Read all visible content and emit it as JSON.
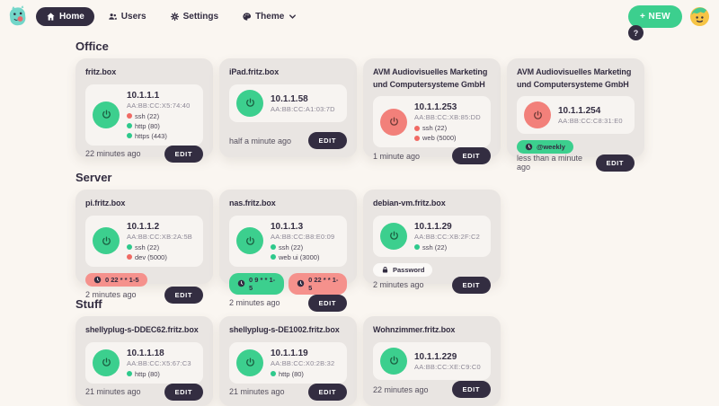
{
  "header": {
    "nav": [
      {
        "label": "Home",
        "icon": "home-icon",
        "active": true,
        "chevron": false
      },
      {
        "label": "Users",
        "icon": "users-icon",
        "active": false,
        "chevron": false
      },
      {
        "label": "Settings",
        "icon": "gear-icon",
        "active": false,
        "chevron": false
      },
      {
        "label": "Theme",
        "icon": "palette-icon",
        "active": false,
        "chevron": true
      }
    ],
    "new_button_label": "+ NEW",
    "help_label": "?"
  },
  "ui": {
    "edit_label": "EDIT"
  },
  "colors": {
    "background": "#faf6f1",
    "card": "#e9e5e2",
    "panel": "#f7f4f1",
    "accent_green": "#3ccf8e",
    "accent_red": "#f2807a",
    "dark": "#332d41",
    "port_open": "#2ec98c",
    "port_closed": "#f06a64"
  },
  "sections": [
    {
      "title": "Office",
      "height_class": "h-office",
      "cards": [
        {
          "name": "fritz.box",
          "power": "on",
          "ip": "10.1.1.1",
          "mac": "AA:BB:CC:X5:74:40",
          "ports": [
            {
              "label": "ssh (22)",
              "status": "closed"
            },
            {
              "label": "http (80)",
              "status": "open"
            },
            {
              "label": "https (443)",
              "status": "open"
            }
          ],
          "badges": [],
          "updated": "22 minutes ago"
        },
        {
          "name": "iPad.fritz.box",
          "power": "on",
          "ip": "10.1.1.58",
          "mac": "AA:BB:CC:A1:03:7D",
          "ports": [],
          "badges": [],
          "updated": "half a minute ago"
        },
        {
          "name": "AVM Audiovisuelles Marketing und Computersysteme GmbH",
          "power": "off",
          "ip": "10.1.1.253",
          "mac": "AA:BB:CC:XB:85:DD",
          "ports": [
            {
              "label": "ssh (22)",
              "status": "closed"
            },
            {
              "label": "web (5000)",
              "status": "closed"
            }
          ],
          "badges": [],
          "updated": "1 minute ago"
        },
        {
          "name": "AVM Audiovisuelles Marketing und Computersysteme GmbH",
          "power": "off",
          "ip": "10.1.1.254",
          "mac": "AA:BB:CC:C8:31:E0",
          "ports": [],
          "badges": [
            {
              "label": "@weekly",
              "type": "green",
              "icon": "clock-icon"
            }
          ],
          "updated": "less than a minute ago"
        }
      ]
    },
    {
      "title": "Server",
      "height_class": "h-server",
      "cards": [
        {
          "name": "pi.fritz.box",
          "power": "on",
          "ip": "10.1.1.2",
          "mac": "AA:BB:CC:XB:2A:5B",
          "ports": [
            {
              "label": "ssh (22)",
              "status": "open"
            },
            {
              "label": "dev (5000)",
              "status": "closed"
            }
          ],
          "badges": [
            {
              "label": "0 22 * * 1-5",
              "type": "red",
              "icon": "clock-icon"
            }
          ],
          "updated": "2 minutes ago"
        },
        {
          "name": "nas.fritz.box",
          "power": "on",
          "ip": "10.1.1.3",
          "mac": "AA:BB:CC:B8:E0:09",
          "ports": [
            {
              "label": "ssh (22)",
              "status": "open"
            },
            {
              "label": "web ui (3000)",
              "status": "open"
            }
          ],
          "badges": [
            {
              "label": "0 9 * * 1-5",
              "type": "green",
              "icon": "clock-icon"
            },
            {
              "label": "0 22 * * 1-5",
              "type": "red",
              "icon": "clock-icon"
            }
          ],
          "updated": "2 minutes ago"
        },
        {
          "name": "debian-vm.fritz.box",
          "power": "on",
          "ip": "10.1.1.29",
          "mac": "AA:BB:CC:XB:2F:C2",
          "ports": [
            {
              "label": "ssh (22)",
              "status": "open"
            }
          ],
          "badges": [
            {
              "label": "Password",
              "type": "white",
              "icon": "lock-icon"
            }
          ],
          "updated": "2 minutes ago"
        }
      ]
    },
    {
      "title": "Stuff",
      "height_class": "h-stuff",
      "cards": [
        {
          "name": "shellyplug-s-DDEC62.fritz.box",
          "power": "on",
          "ip": "10.1.1.18",
          "mac": "AA:BB:CC:X5:67:C3",
          "ports": [
            {
              "label": "http (80)",
              "status": "open"
            }
          ],
          "badges": [],
          "updated": "21 minutes ago"
        },
        {
          "name": "shellyplug-s-DE1002.fritz.box",
          "power": "on",
          "ip": "10.1.1.19",
          "mac": "AA:BB:CC:X0:2B:32",
          "ports": [
            {
              "label": "http (80)",
              "status": "open"
            }
          ],
          "badges": [],
          "updated": "21 minutes ago"
        },
        {
          "name": "Wohnzimmer.fritz.box",
          "power": "on",
          "ip": "10.1.1.229",
          "mac": "AA:BB:CC:XE:C9:C0",
          "ports": [],
          "badges": [],
          "updated": "22 minutes ago"
        }
      ]
    }
  ]
}
